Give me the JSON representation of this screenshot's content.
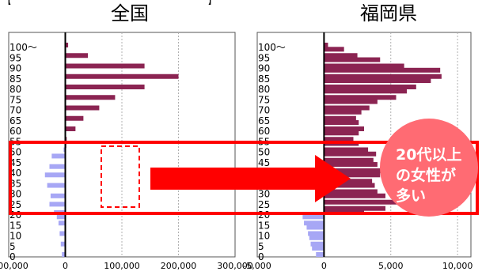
{
  "header": {
    "bracket_open": "【",
    "bracket_close": "】"
  },
  "panels": {
    "left_title": "全国",
    "right_title": "福岡県"
  },
  "callout": {
    "text": "20代以上\nの女性が\n多い"
  },
  "colors": {
    "male": "#a7a7f5",
    "female": "#8b2452",
    "highlight": "#ff0000",
    "callout": "#ff6b73",
    "grid": "#b0b0b0"
  },
  "chart_data": [
    {
      "type": "bar",
      "title": "全国",
      "ylabels": [
        "0",
        "5",
        "10",
        "15",
        "20",
        "25",
        "30",
        "35",
        "40",
        "45",
        "50",
        "55",
        "60",
        "65",
        "70",
        "75",
        "80",
        "85",
        "90",
        "95",
        "100～"
      ],
      "xticks": [
        "-100,000",
        "0",
        "100,000",
        "200,000",
        "300,000"
      ],
      "xlim": [
        -100000,
        300000
      ],
      "ylim": [
        0,
        100
      ],
      "grid": true,
      "female": {
        "ages": [
          52,
          55,
          60,
          65,
          70,
          75,
          80,
          85,
          90,
          95,
          100
        ],
        "values": [
          1800,
          2500,
          18000,
          32000,
          60000,
          88000,
          140000,
          200000,
          140000,
          40000,
          5000
        ]
      },
      "male": {
        "ages": [
          0,
          5,
          10,
          15,
          18,
          20,
          24,
          28,
          33,
          38,
          42,
          47,
          50
        ],
        "values": [
          -6000,
          -8000,
          -10000,
          -12000,
          -15000,
          -20000,
          -28000,
          -26000,
          -32000,
          -36000,
          -28000,
          -24000,
          -3000
        ]
      }
    },
    {
      "type": "bar",
      "title": "福岡県",
      "ylabels": [
        "0",
        "5",
        "10",
        "15",
        "20",
        "25",
        "30",
        "35",
        "40",
        "45",
        "50",
        "55",
        "60",
        "65",
        "70",
        "75",
        "80",
        "85",
        "90",
        "95",
        "100～"
      ],
      "xticks": [
        "-5,000",
        "0",
        "5,000",
        "10,000"
      ],
      "xlim": [
        -5000,
        11000
      ],
      "ylim": [
        0,
        100
      ],
      "grid": true,
      "female": {
        "ages": [
          20,
          22,
          25,
          28,
          30,
          33,
          35,
          38,
          40,
          43,
          45,
          48,
          50,
          53,
          55,
          58,
          60,
          63,
          65,
          68,
          70,
          73,
          75,
          78,
          80,
          83,
          85,
          88,
          90,
          93,
          95,
          98,
          100
        ],
        "values": [
          3000,
          4600,
          5800,
          4600,
          4000,
          3800,
          3600,
          4200,
          4500,
          4000,
          3700,
          3900,
          3300,
          2600,
          2200,
          2600,
          3000,
          2600,
          2400,
          2800,
          3400,
          4000,
          5400,
          6200,
          6900,
          8000,
          8800,
          8700,
          6000,
          4200,
          2500,
          1500,
          300
        ]
      },
      "male": {
        "ages": [
          0,
          3,
          5,
          8,
          10,
          13,
          15,
          18,
          19
        ],
        "values": [
          -600,
          -900,
          -1000,
          -1100,
          -1200,
          -1300,
          -1500,
          -1600,
          -800
        ]
      }
    }
  ]
}
